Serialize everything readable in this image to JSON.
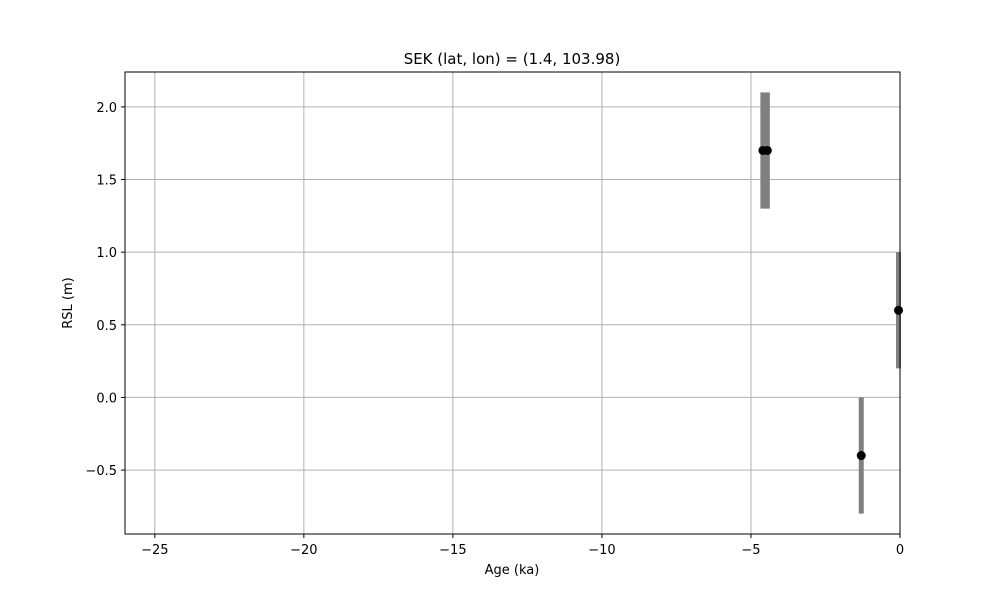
{
  "chart_data": {
    "type": "scatter",
    "title": "SEK (lat, lon) = (1.4, 103.98)",
    "xlabel": "Age (ka)",
    "ylabel": "RSL (m)",
    "xlim": [
      -26,
      0
    ],
    "ylim": [
      -0.94,
      2.24
    ],
    "grid": true,
    "xticks": [
      -25,
      -20,
      -15,
      -10,
      -5,
      0
    ],
    "xtick_labels": [
      "−25",
      "−20",
      "−15",
      "−10",
      "−5",
      "0"
    ],
    "yticks": [
      -0.5,
      0.0,
      0.5,
      1.0,
      1.5,
      2.0
    ],
    "ytick_labels": [
      "−0.5",
      "0.0",
      "0.5",
      "1.0",
      "1.5",
      "2.0"
    ],
    "marker_color": "#000000",
    "errorbar_color": "#808080",
    "points": [
      {
        "x": -4.6,
        "y": 1.7,
        "y_low": 1.3,
        "y_high": 2.1
      },
      {
        "x": -4.45,
        "y": 1.7,
        "y_low": 1.3,
        "y_high": 2.1
      },
      {
        "x": -0.05,
        "y": 0.6,
        "y_low": 0.2,
        "y_high": 1.0
      },
      {
        "x": -1.3,
        "y": -0.4,
        "y_low": -0.8,
        "y_high": 0.0
      }
    ]
  }
}
